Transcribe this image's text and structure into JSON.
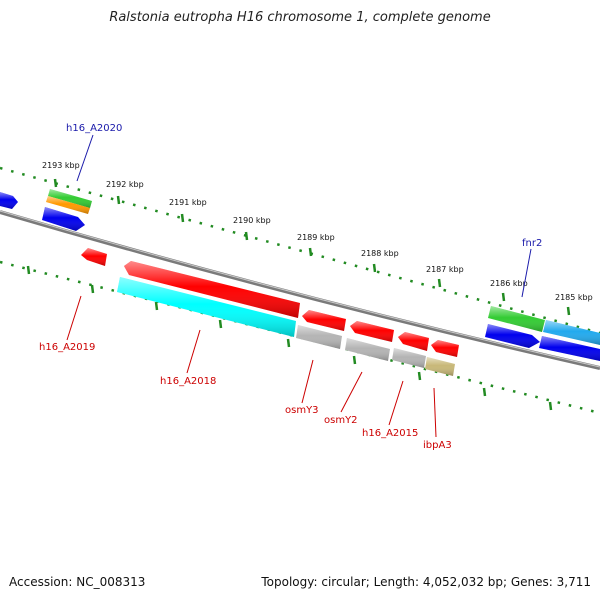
{
  "title": "Ralstonia eutropha H16 chromosome 1, complete genome",
  "footer": {
    "accession": "Accession: NC_008313",
    "summary": "Topology: circular; Length: 4,052,032 bp; Genes: 3,711"
  },
  "colors": {
    "backbone": "#808080",
    "ticks": "#228b22",
    "forward_label": "#1a1aaa",
    "reverse_label": "#cc0000",
    "red": "#ff0000",
    "blue": "#0000ee",
    "green": "#33cc33",
    "orange": "#ff9900",
    "cyan": "#00ffff",
    "sky": "#22aaee",
    "grey": "#b4b4b4",
    "khaki": "#c8b878"
  },
  "ruler": {
    "labels": [
      "2193 kbp",
      "2192 kbp",
      "2191 kbp",
      "2190 kbp",
      "2189 kbp",
      "2188 kbp",
      "2187 kbp",
      "2186 kbp",
      "2185 kbp"
    ]
  },
  "gene_labels": {
    "h16_A2020": "h16_A2020",
    "fnr2": "fnr2",
    "h16_A2019": "h16_A2019",
    "h16_A2018": "h16_A2018",
    "osmY3": "osmY3",
    "osmY2": "osmY2",
    "h16_A2015": "h16_A2015",
    "ibpA3": "ibpA3"
  }
}
